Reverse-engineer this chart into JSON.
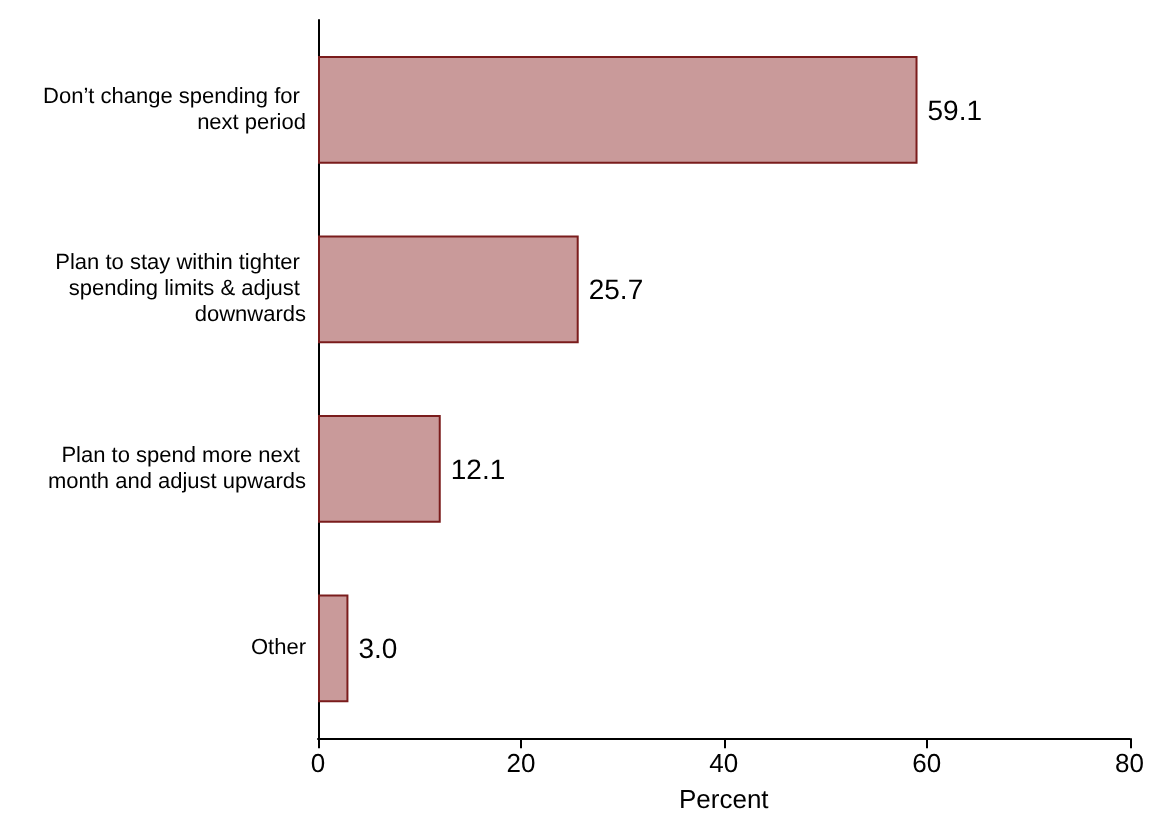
{
  "chart_data": {
    "type": "bar",
    "orientation": "horizontal",
    "xlabel": "Percent",
    "categories": [
      "Don’t change spending for next period",
      "Plan to stay within tighter spending limits & adjust downwards",
      "Plan to spend more next month and adjust upwards",
      "Other"
    ],
    "values": [
      59.1,
      25.7,
      12.1,
      3.0
    ],
    "value_labels": [
      "59.1",
      "25.7",
      "12.1",
      "3.0"
    ],
    "color": "#c99a9a",
    "xlim": [
      0,
      80
    ],
    "xticks": [
      0,
      20,
      40,
      60,
      80
    ]
  }
}
